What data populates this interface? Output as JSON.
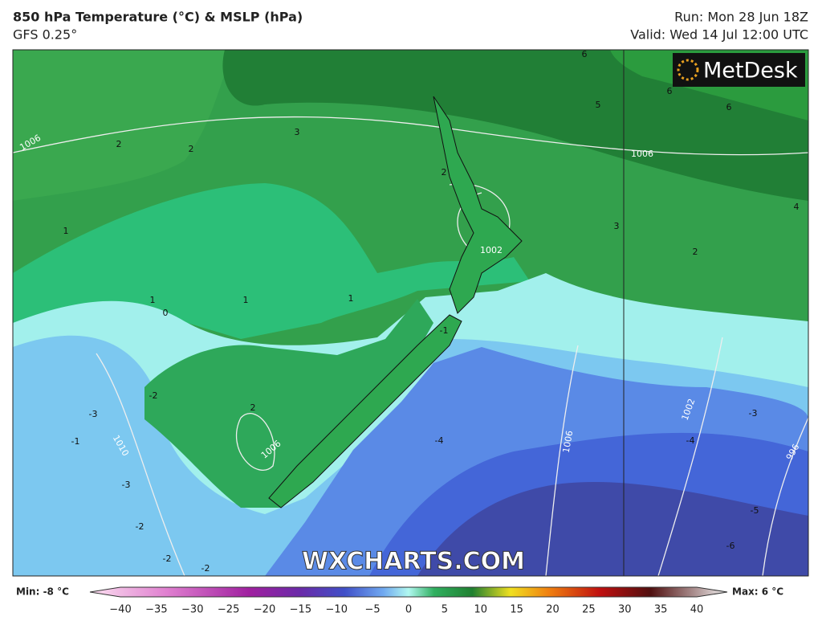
{
  "header": {
    "title": "850 hPa Temperature (°C) & MSLP (hPa)",
    "model": "GFS 0.25°",
    "run": "Run: Mon 28 Jun 18Z",
    "valid": "Valid: Wed 14 Jul 12:00 UTC"
  },
  "logo": "MetDesk",
  "watermark": "WXCHARTS.COM",
  "colorbar": {
    "min_label": "Min: -8 °C",
    "max_label": "Max: 6 °C",
    "ticks": [
      "−40",
      "−35",
      "−30",
      "−25",
      "−20",
      "−15",
      "−10",
      "−5",
      "0",
      "5",
      "10",
      "15",
      "20",
      "25",
      "30",
      "35",
      "40"
    ]
  },
  "contour_labels": [
    "6",
    "5",
    "6",
    "6",
    "1006",
    "3",
    "2",
    "2",
    "1006",
    "2",
    "1002",
    "2",
    "3",
    "4",
    "1",
    "1",
    "0",
    "1",
    "1",
    "-1",
    "-2",
    "-3",
    "-1",
    "1010",
    "2",
    "1006",
    "-3",
    "-2",
    "-2",
    "-4",
    "1006",
    "1002",
    "-3",
    "-4",
    "996",
    "-5",
    "-6",
    "-2"
  ]
}
